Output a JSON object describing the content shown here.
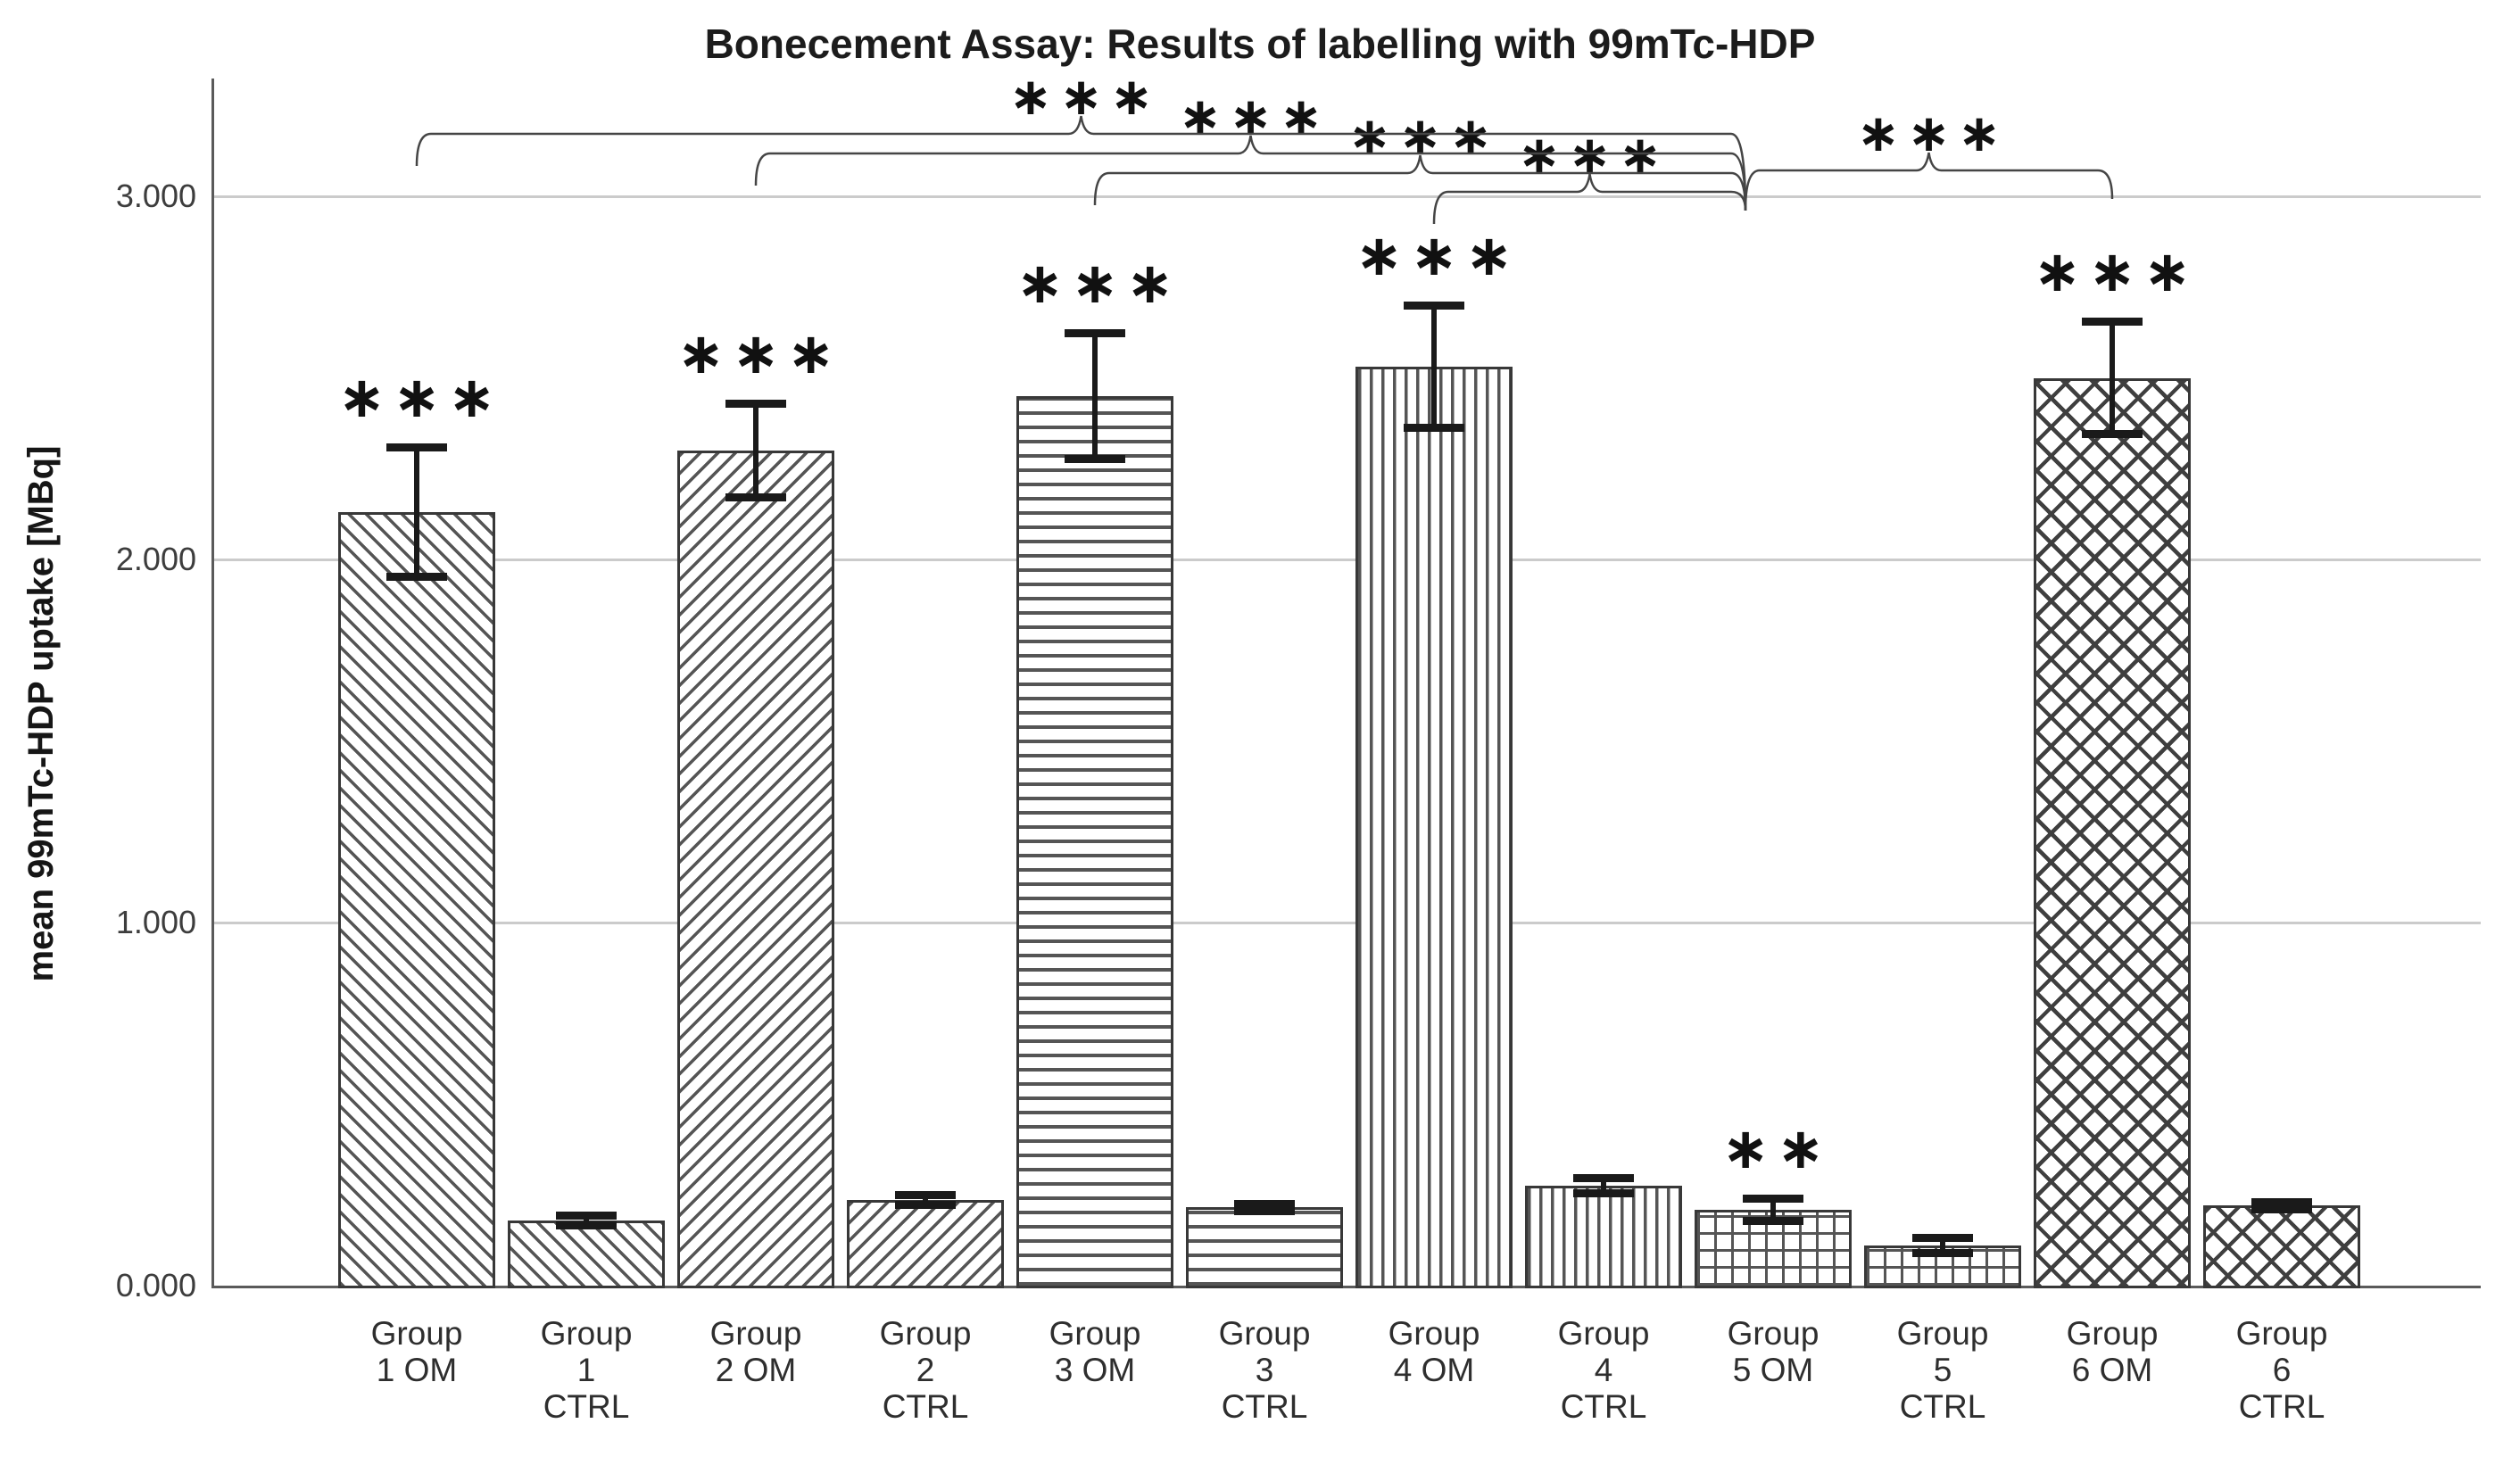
{
  "chart_data": {
    "type": "bar",
    "title": "Bonecement Assay: Results of labelling with 99mTc-HDP",
    "ylabel": "mean 99mTc-HDP uptake [MBq]",
    "xlabel": "",
    "unit": "MBq",
    "ylim": [
      0,
      3.3
    ],
    "grid": true,
    "legend": "none",
    "yticks": [
      {
        "label": "0.000",
        "value": 0
      },
      {
        "label": "1.000",
        "value": 1
      },
      {
        "label": "2.000",
        "value": 2
      },
      {
        "label": "3.000",
        "value": 3
      }
    ],
    "categories": [
      "Group 1 OM",
      "Group 1 CTRL",
      "Group 2 OM",
      "Group 2 CTRL",
      "Group 3 OM",
      "Group 3 CTRL",
      "Group 4 OM",
      "Group 4 CTRL",
      "Group 5 OM",
      "Group 5 CTRL",
      "Group 6 OM",
      "Group 6 CTRL"
    ],
    "bars": [
      {
        "id": "group-1-om",
        "label_lines": [
          "Group",
          "1 OM"
        ],
        "value": 2.13,
        "err": 0.18,
        "pattern": "diag-down",
        "sig": "∗∗∗"
      },
      {
        "id": "group-1-ctrl",
        "label_lines": [
          "Group",
          "1",
          "CTRL"
        ],
        "value": 0.18,
        "err": 0.015,
        "pattern": "diag-down",
        "sig": ""
      },
      {
        "id": "group-2-om",
        "label_lines": [
          "Group",
          "2 OM"
        ],
        "value": 2.3,
        "err": 0.13,
        "pattern": "diag-up",
        "sig": "∗∗∗"
      },
      {
        "id": "group-2-ctrl",
        "label_lines": [
          "Group",
          "2",
          "CTRL"
        ],
        "value": 0.235,
        "err": 0.015,
        "pattern": "diag-up",
        "sig": ""
      },
      {
        "id": "group-3-om",
        "label_lines": [
          "Group",
          "3 OM"
        ],
        "value": 2.45,
        "err": 0.175,
        "pattern": "horiz",
        "sig": "∗∗∗"
      },
      {
        "id": "group-3-ctrl",
        "label_lines": [
          "Group",
          "3",
          "CTRL"
        ],
        "value": 0.215,
        "err": 0.012,
        "pattern": "horiz",
        "sig": ""
      },
      {
        "id": "group-4-om",
        "label_lines": [
          "Group",
          "4 OM"
        ],
        "value": 2.53,
        "err": 0.17,
        "pattern": "vert",
        "sig": "∗∗∗"
      },
      {
        "id": "group-4-ctrl",
        "label_lines": [
          "Group",
          "4",
          "CTRL"
        ],
        "value": 0.275,
        "err": 0.022,
        "pattern": "vert",
        "sig": ""
      },
      {
        "id": "group-5-om",
        "label_lines": [
          "Group",
          "5 OM"
        ],
        "value": 0.21,
        "err": 0.032,
        "pattern": "grid",
        "sig": "∗∗"
      },
      {
        "id": "group-5-ctrl",
        "label_lines": [
          "Group",
          "5",
          "CTRL"
        ],
        "value": 0.11,
        "err": 0.022,
        "pattern": "grid",
        "sig": ""
      },
      {
        "id": "group-6-om",
        "label_lines": [
          "Group",
          "6 OM"
        ],
        "value": 2.5,
        "err": 0.155,
        "pattern": "cross",
        "sig": "∗∗∗"
      },
      {
        "id": "group-6-ctrl",
        "label_lines": [
          "Group",
          "6",
          "CTRL"
        ],
        "value": 0.22,
        "err": 0.012,
        "pattern": "cross",
        "sig": ""
      }
    ],
    "significance_brackets": [
      {
        "label": "∗∗∗",
        "from": 0,
        "to": "conv",
        "line_y": 150
      },
      {
        "label": "∗∗∗",
        "from": 2,
        "to": "conv",
        "line_y": 172
      },
      {
        "label": "∗∗∗",
        "from": 4,
        "to": "conv",
        "line_y": 194
      },
      {
        "label": "∗∗∗",
        "from": 6,
        "to": "conv",
        "line_y": 215
      },
      {
        "label": "∗∗∗",
        "from": "conv",
        "to": 10,
        "line_y": 191
      }
    ],
    "colors": {
      "background": "#ffffff",
      "axis": "#5a5a5a",
      "gridline": "#cbcbcb",
      "bar_outline": "#383838",
      "hatch": "#555555",
      "error_bar": "#1a1a1a",
      "text": "#1c1c1c"
    }
  }
}
